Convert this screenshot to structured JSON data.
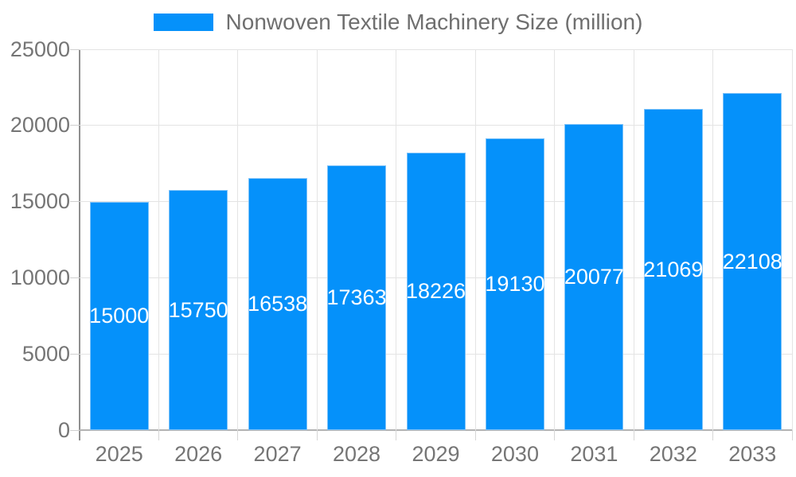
{
  "legend": {
    "label": "Nonwoven Textile Machinery Size (million)",
    "swatch_color": "#0591fa"
  },
  "chart_data": {
    "type": "bar",
    "title": "Nonwoven Textile Machinery Size (million)",
    "series": [
      {
        "name": "Nonwoven Textile Machinery Size (million)",
        "values": [
          15000,
          15750,
          16538,
          17363,
          18226,
          19130,
          20077,
          21069,
          22108
        ]
      }
    ],
    "categories": [
      "2025",
      "2026",
      "2027",
      "2028",
      "2029",
      "2030",
      "2031",
      "2032",
      "2033"
    ],
    "value_labels": [
      "15000",
      "15750",
      "16538",
      "17363",
      "18226",
      "19130",
      "20077",
      "21069",
      "22108"
    ],
    "xlabel": "",
    "ylabel": "",
    "ylim": [
      0,
      25000
    ],
    "yticks": [
      0,
      5000,
      10000,
      15000,
      20000,
      25000
    ],
    "ytick_labels": [
      "0",
      "5000",
      "10000",
      "15000",
      "20000",
      "25000"
    ],
    "grid": true,
    "legend_position": "top",
    "bar_color": "#0591fa",
    "bar_edge_color": "#7fc3f9",
    "value_label_color": "#ffffff",
    "axis_text_color": "#757575"
  }
}
